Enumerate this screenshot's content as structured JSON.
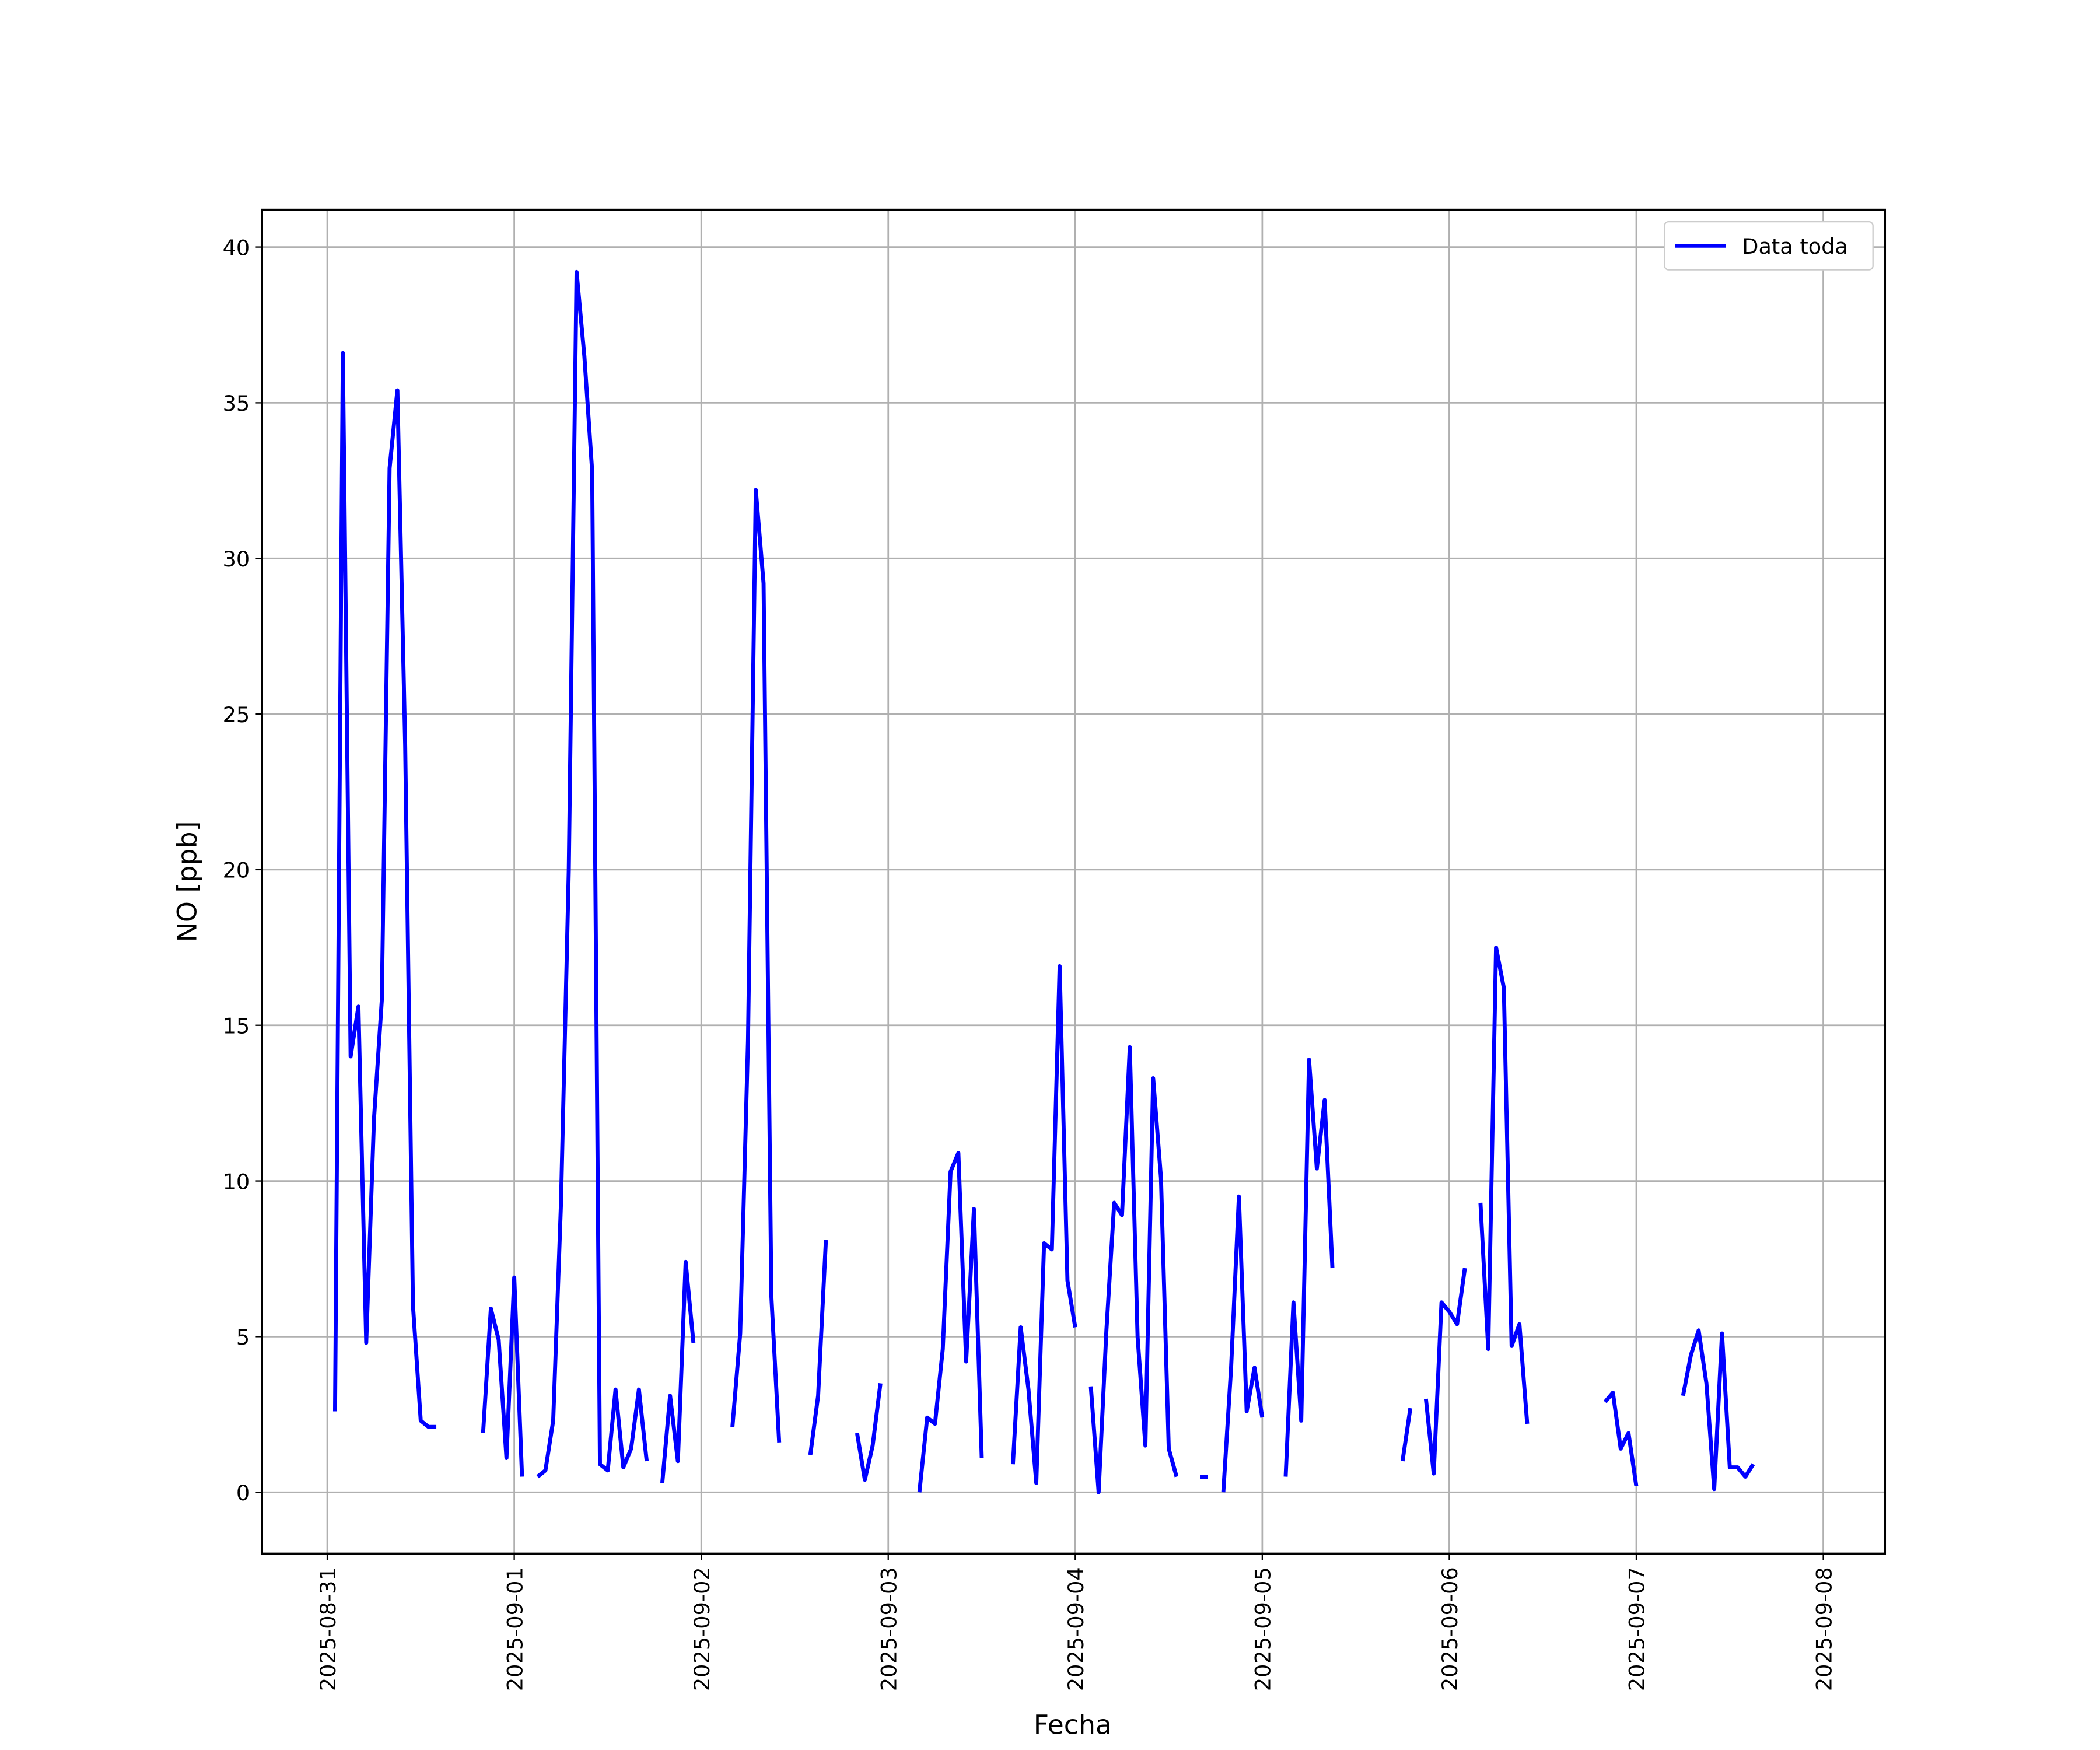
{
  "chart_data": {
    "type": "line",
    "x_label": "Fecha",
    "y_label": "NO [ppb]",
    "x": [
      "2025-08-31 01:00",
      "2025-08-31 02:00",
      "2025-08-31 03:00",
      "2025-08-31 04:00",
      "2025-08-31 05:00",
      "2025-08-31 06:00",
      "2025-08-31 07:00",
      "2025-08-31 08:00",
      "2025-08-31 09:00",
      "2025-08-31 10:00",
      "2025-08-31 11:00",
      "2025-08-31 12:00",
      "2025-08-31 13:00",
      "2025-08-31 14:00",
      "2025-08-31 15:00",
      "2025-08-31 20:00",
      "2025-08-31 21:00",
      "2025-08-31 22:00",
      "2025-08-31 23:00",
      "2025-09-01 00:00",
      "2025-09-01 01:00",
      "2025-09-01 02:00",
      "2025-09-01 03:00",
      "2025-09-01 04:00",
      "2025-09-01 05:00",
      "2025-09-01 06:00",
      "2025-09-01 07:00",
      "2025-09-01 08:00",
      "2025-09-01 09:00",
      "2025-09-01 10:00",
      "2025-09-01 11:00",
      "2025-09-01 12:00",
      "2025-09-01 13:00",
      "2025-09-01 14:00",
      "2025-09-01 15:00",
      "2025-09-01 16:00",
      "2025-09-01 17:00",
      "2025-09-01 18:00",
      "2025-09-01 19:00",
      "2025-09-01 20:00",
      "2025-09-01 21:00",
      "2025-09-01 22:00",
      "2025-09-01 23:00",
      "2025-09-02 00:00",
      "2025-09-02 04:00",
      "2025-09-02 05:00",
      "2025-09-02 06:00",
      "2025-09-02 07:00",
      "2025-09-02 08:00",
      "2025-09-02 09:00",
      "2025-09-02 10:00",
      "2025-09-02 11:00",
      "2025-09-02 14:00",
      "2025-09-02 15:00",
      "2025-09-02 16:00",
      "2025-09-02 17:00",
      "2025-09-02 20:00",
      "2025-09-02 21:00",
      "2025-09-02 22:00",
      "2025-09-02 23:00",
      "2025-09-03 00:00",
      "2025-09-03 04:00",
      "2025-09-03 05:00",
      "2025-09-03 06:00",
      "2025-09-03 07:00",
      "2025-09-03 08:00",
      "2025-09-03 09:00",
      "2025-09-03 10:00",
      "2025-09-03 11:00",
      "2025-09-03 12:00",
      "2025-09-03 13:00",
      "2025-09-03 16:00",
      "2025-09-03 17:00",
      "2025-09-03 18:00",
      "2025-09-03 19:00",
      "2025-09-03 20:00",
      "2025-09-03 21:00",
      "2025-09-03 22:00",
      "2025-09-03 23:00",
      "2025-09-04 00:00",
      "2025-09-04 01:00",
      "2025-09-04 02:00",
      "2025-09-04 03:00",
      "2025-09-04 04:00",
      "2025-09-04 05:00",
      "2025-09-04 06:00",
      "2025-09-04 07:00",
      "2025-09-04 08:00",
      "2025-09-04 09:00",
      "2025-09-04 10:00",
      "2025-09-04 11:00",
      "2025-09-04 12:00",
      "2025-09-04 13:00",
      "2025-09-04 14:00",
      "2025-09-04 16:00",
      "2025-09-04 17:00",
      "2025-09-04 18:00",
      "2025-09-04 19:00",
      "2025-09-04 20:00",
      "2025-09-04 21:00",
      "2025-09-04 22:00",
      "2025-09-04 23:00",
      "2025-09-05 00:00",
      "2025-09-05 01:00",
      "2025-09-05 03:00",
      "2025-09-05 04:00",
      "2025-09-05 05:00",
      "2025-09-05 06:00",
      "2025-09-05 07:00",
      "2025-09-05 08:00",
      "2025-09-05 09:00",
      "2025-09-05 10:00",
      "2025-09-05 18:00",
      "2025-09-05 19:00",
      "2025-09-05 20:00",
      "2025-09-05 21:00",
      "2025-09-05 22:00",
      "2025-09-05 23:00",
      "2025-09-06 00:00",
      "2025-09-06 01:00",
      "2025-09-06 02:00",
      "2025-09-06 03:00",
      "2025-09-06 04:00",
      "2025-09-06 05:00",
      "2025-09-06 06:00",
      "2025-09-06 07:00",
      "2025-09-06 08:00",
      "2025-09-06 09:00",
      "2025-09-06 10:00",
      "2025-09-06 11:00",
      "2025-09-06 20:00",
      "2025-09-06 21:00",
      "2025-09-06 22:00",
      "2025-09-06 23:00",
      "2025-09-07 00:00",
      "2025-09-07 01:00",
      "2025-09-07 06:00",
      "2025-09-07 07:00",
      "2025-09-07 08:00",
      "2025-09-07 09:00",
      "2025-09-07 10:00",
      "2025-09-07 11:00",
      "2025-09-07 12:00",
      "2025-09-07 13:00",
      "2025-09-07 14:00",
      "2025-09-07 15:00"
    ],
    "series": [
      {
        "name": "Data toda",
        "color": "#0000ff",
        "values": [
          2.6,
          36.6,
          14,
          15.6,
          4.8,
          12,
          15.8,
          32.9,
          35.4,
          24,
          6,
          2.3,
          2.1,
          2.1,
          null,
          1.9,
          5.9,
          4.9,
          1.1,
          6.9,
          0.5,
          null,
          0.5,
          0.7,
          2.3,
          9.3,
          20,
          39.2,
          36.5,
          32.8,
          0.9,
          0.7,
          3.3,
          0.8,
          1.4,
          3.3,
          1.0,
          null,
          0.3,
          3.1,
          1.0,
          7.4,
          4.8,
          null,
          2.1,
          5.1,
          14.5,
          32.2,
          29.2,
          6.3,
          1.6,
          null,
          1.2,
          3.1,
          8.1,
          null,
          1.9,
          0.4,
          1.5,
          3.5,
          null,
          0.0,
          2.4,
          2.2,
          4.6,
          10.3,
          10.9,
          4.2,
          9.1,
          1.1,
          null,
          0.9,
          5.3,
          3.3,
          0.3,
          8.0,
          7.8,
          16.9,
          6.8,
          5.3,
          null,
          3.4,
          0.0,
          5.2,
          9.3,
          8.9,
          14.3,
          5.0,
          1.5,
          13.3,
          10.1,
          1.4,
          0.5,
          null,
          0.5,
          0.5,
          null,
          0.0,
          4.0,
          9.5,
          2.6,
          4.0,
          2.4,
          null,
          0.5,
          6.1,
          2.3,
          13.9,
          10.4,
          12.6,
          7.2,
          null,
          1.0,
          2.7,
          null,
          3.0,
          0.6,
          6.1,
          5.8,
          5.4,
          7.2,
          null,
          9.3,
          4.6,
          17.5,
          16.2,
          4.7,
          5.4,
          2.2,
          null,
          2.9,
          3.2,
          1.4,
          1.9,
          0.2,
          null,
          3.1,
          4.4,
          5.2,
          3.5,
          0.1,
          5.1,
          0.8,
          0.8,
          0.5,
          0.9
        ]
      }
    ],
    "xlim": [
      "2025-08-30 15:36",
      "2025-09-08 07:55"
    ],
    "xticks": [
      "2025-08-31",
      "2025-09-01",
      "2025-09-02",
      "2025-09-03",
      "2025-09-04",
      "2025-09-05",
      "2025-09-06",
      "2025-09-07",
      "2025-09-08"
    ],
    "ylim": [
      -1.97,
      41.2
    ],
    "yticks": [
      0,
      5,
      10,
      15,
      20,
      25,
      30,
      35,
      40
    ],
    "grid": true,
    "legend": "upper right"
  }
}
